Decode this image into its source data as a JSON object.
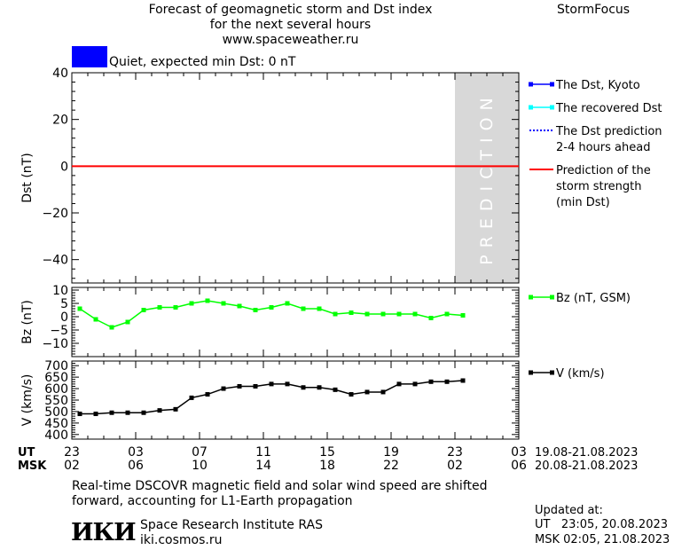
{
  "header": {
    "title_line1": "Forecast of geomagnetic storm and Dst index",
    "title_line2": "for the next several hours",
    "website": "www.spaceweather.ru",
    "brand": "StormFocus"
  },
  "status": {
    "color": "#0000ff",
    "text": "Quiet, expected min Dst: 0 nT"
  },
  "legend_dst": [
    {
      "label": "The Dst, Kyoto",
      "color": "#0000ff",
      "style": "line-square"
    },
    {
      "label": "The recovered Dst",
      "color": "#00ffff",
      "style": "line-square"
    },
    {
      "label": "The Dst prediction",
      "label2": "2-4 hours ahead",
      "color": "#0000ff",
      "style": "dotted"
    },
    {
      "label": "Prediction of the",
      "label2": "storm strength",
      "label3": "(min Dst)",
      "color": "#ff0000",
      "style": "line"
    }
  ],
  "legend_bz": {
    "label": "Bz (nT, GSM)",
    "color": "#00ff00"
  },
  "legend_v": {
    "label": "V (km/s)",
    "color": "#000000"
  },
  "prediction_label": "PREDICTION",
  "time_axis": {
    "ut_label": "UT",
    "msk_label": "MSK",
    "ut_ticks": [
      "23",
      "03",
      "07",
      "11",
      "15",
      "19",
      "23",
      "03"
    ],
    "msk_ticks": [
      "02",
      "06",
      "10",
      "14",
      "18",
      "22",
      "02",
      "06"
    ],
    "ut_range": "19.08-21.08.2023",
    "msk_range": "20.08-21.08.2023"
  },
  "chart_data": [
    {
      "type": "line",
      "ylabel": "Dst (nT)",
      "ylim": [
        -50,
        40
      ],
      "yticks": [
        40,
        20,
        0,
        -20,
        -40
      ],
      "x_hours": [
        0,
        28
      ],
      "prediction_region": [
        24,
        28
      ],
      "series": [
        {
          "name": "Prediction of the storm strength (min Dst)",
          "color": "#ff0000",
          "x": [
            0,
            28
          ],
          "values": [
            0,
            0
          ]
        }
      ]
    },
    {
      "type": "line",
      "ylabel": "Bz (nT)",
      "ylim": [
        -15,
        11
      ],
      "yticks": [
        10,
        5,
        0,
        -5,
        -10
      ],
      "x_hours": [
        0,
        28
      ],
      "series": [
        {
          "name": "Bz (nT, GSM)",
          "color": "#00ff00",
          "x": [
            0.5,
            1.5,
            2.5,
            3.5,
            4.5,
            5.5,
            6.5,
            7.5,
            8.5,
            9.5,
            10.5,
            11.5,
            12.5,
            13.5,
            14.5,
            15.5,
            16.5,
            17.5,
            18.5,
            19.5,
            20.5,
            21.5,
            22.5,
            23.5,
            24.5
          ],
          "values": [
            3,
            -1,
            -4,
            -2,
            2.5,
            3.5,
            3.5,
            5,
            6,
            5,
            4,
            2.5,
            3.5,
            5,
            3,
            3,
            1,
            1.5,
            1,
            1,
            1,
            1,
            -0.5,
            1,
            0.5
          ]
        }
      ]
    },
    {
      "type": "line",
      "ylabel": "V (km/s)",
      "ylim": [
        380,
        720
      ],
      "yticks": [
        700,
        650,
        600,
        550,
        500,
        450,
        400
      ],
      "x_hours": [
        0,
        28
      ],
      "series": [
        {
          "name": "V (km/s)",
          "color": "#000000",
          "x": [
            0.5,
            1.5,
            2.5,
            3.5,
            4.5,
            5.5,
            6.5,
            7.5,
            8.5,
            9.5,
            10.5,
            11.5,
            12.5,
            13.5,
            14.5,
            15.5,
            16.5,
            17.5,
            18.5,
            19.5,
            20.5,
            21.5,
            22.5,
            23.5,
            24.5
          ],
          "values": [
            490,
            490,
            495,
            495,
            495,
            505,
            510,
            560,
            575,
            600,
            610,
            610,
            620,
            620,
            605,
            605,
            595,
            575,
            585,
            585,
            620,
            620,
            630,
            630,
            635
          ]
        }
      ]
    }
  ],
  "footer": {
    "note_line1": "Real-time DSCOVR magnetic field and solar wind speed are shifted",
    "note_line2": "forward, accounting for L1-Earth propagation",
    "logo": "ИКИ",
    "institute": "Space Research Institute RAS",
    "institute_url": "iki.cosmos.ru",
    "updated_label": "Updated at:",
    "updated_ut": "UT   23:05, 20.08.2023",
    "updated_msk": "MSK 02:05, 21.08.2023"
  }
}
